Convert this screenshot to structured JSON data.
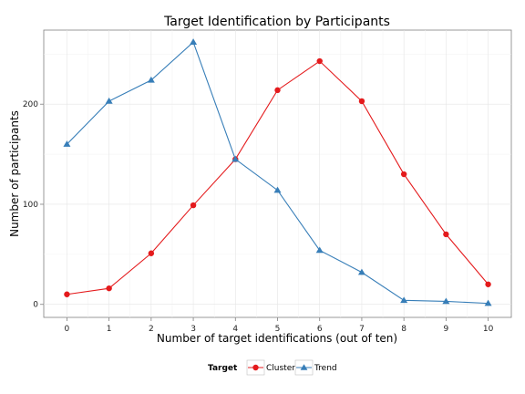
{
  "chart_data": {
    "type": "line",
    "title": "Target Identification by Participants",
    "xlabel": "Number of target identifications (out of ten)",
    "ylabel": "Number of participants",
    "x": [
      0,
      1,
      2,
      3,
      4,
      5,
      6,
      7,
      8,
      9,
      10
    ],
    "x_tick_labels": [
      "0",
      "1",
      "2",
      "3",
      "4",
      "5",
      "6",
      "7",
      "8",
      "9",
      "10"
    ],
    "y_ticks": [
      0,
      100,
      200
    ],
    "y_tick_labels": [
      "0",
      "100",
      "200"
    ],
    "xlim": [
      -0.55,
      10.55
    ],
    "ylim": [
      -13,
      274
    ],
    "grid": true,
    "legend": {
      "title": "Target",
      "placement": "bottom"
    },
    "series": [
      {
        "name": "Cluster",
        "marker": "circle",
        "color": "#e41a1c",
        "values": [
          10,
          16,
          51,
          99,
          145,
          214,
          243,
          203,
          130,
          70,
          20
        ]
      },
      {
        "name": "Trend",
        "marker": "triangle",
        "color": "#377eb8",
        "values": [
          160,
          203,
          224,
          262,
          145,
          114,
          54,
          32,
          4,
          3,
          1
        ]
      }
    ]
  }
}
